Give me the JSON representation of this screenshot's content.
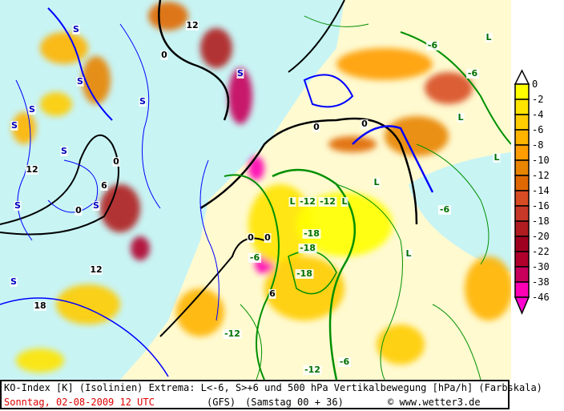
{
  "caption": {
    "line1": "KO-Index [K] (Isolinien) Extrema: L<-6, S>+6 und 500 hPa Vertikalbewegung [hPa/h] (Farbskala)",
    "date": "Sonntag, 02-08-2009  12 UTC",
    "model": "(GFS)",
    "run": "(Samstag 00 + 36)",
    "copyright_symbol": "©",
    "site": "www.wetter3.de"
  },
  "colorbar": {
    "labels": [
      "0",
      "-2",
      "-4",
      "-6",
      "-8",
      "-10",
      "-12",
      "-14",
      "-16",
      "-18",
      "-20",
      "-22",
      "-30",
      "-38",
      "-46"
    ],
    "colors": [
      "#ffff00",
      "#ffe400",
      "#ffcc00",
      "#ffb400",
      "#ff9c00",
      "#e88400",
      "#e06800",
      "#d84c24",
      "#c83828",
      "#b01c20",
      "#a00020",
      "#b0002c",
      "#c8005c",
      "#ff00b4"
    ],
    "top_extend_color": "#ffffff",
    "bottom_extend_color": "#ff00d0"
  },
  "map": {
    "colors": {
      "stable_fill": "#c8f4f4",
      "neutral_fill": "#fffad0",
      "unstable_contour": "#009000",
      "stable_contour": "#0000ff",
      "zero_contour": "#000000"
    },
    "labels": [
      "S",
      "S",
      "S",
      "S",
      "S",
      "S",
      "S",
      "S",
      "S",
      "S",
      "L",
      "L",
      "L",
      "L",
      "L",
      "L",
      "L",
      "0",
      "0",
      "0",
      "0",
      "0",
      "0",
      "0",
      "6",
      "6",
      "12",
      "12",
      "12",
      "18",
      "-6",
      "-6",
      "-6",
      "-6",
      "-12",
      "-12",
      "-12",
      "-18",
      "-18",
      "-18",
      "-6",
      "-12"
    ]
  }
}
